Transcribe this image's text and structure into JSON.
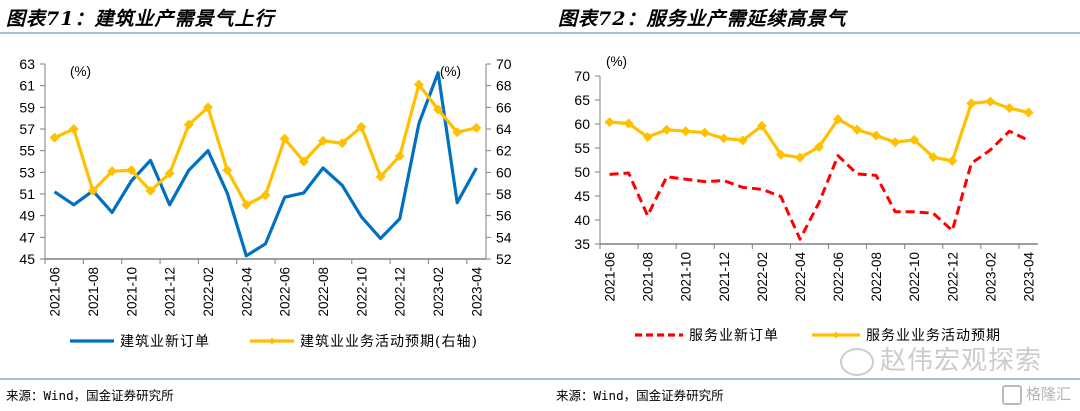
{
  "source_text": "来源：Wind，国金证券研究所",
  "watermark": {
    "text": "赵伟宏观探索",
    "icon": "wechat-icon",
    "logo_text": "格隆汇",
    "logo_icon": "gelonghui-logo-icon"
  },
  "colors": {
    "blue": "#0070C0",
    "gold": "#FFC000",
    "red": "#FF0000",
    "rule": "#a9c0d3",
    "axis": "#808080"
  },
  "chart_data": [
    {
      "type": "line",
      "title": "图表71：建筑业产需景气上行",
      "x": [
        "2021-06",
        "2021-07",
        "2021-08",
        "2021-09",
        "2021-10",
        "2021-11",
        "2021-12",
        "2022-01",
        "2022-02",
        "2022-03",
        "2022-04",
        "2022-05",
        "2022-06",
        "2022-07",
        "2022-08",
        "2022-09",
        "2022-10",
        "2022-11",
        "2022-12",
        "2023-01",
        "2023-02",
        "2023-03",
        "2023-04"
      ],
      "xticks": [
        "2021-06",
        "2021-08",
        "2021-10",
        "2021-12",
        "2022-02",
        "2022-04",
        "2022-06",
        "2022-08",
        "2022-10",
        "2022-12",
        "2023-02",
        "2023-04"
      ],
      "ylabel_left": "(%)",
      "ylabel_right": "(%)",
      "ylim_left": [
        45,
        63
      ],
      "yticks_left": [
        45,
        47,
        49,
        51,
        53,
        55,
        57,
        59,
        61,
        63
      ],
      "ylim_right": [
        52,
        70
      ],
      "yticks_right": [
        52,
        54,
        56,
        58,
        60,
        62,
        64,
        66,
        68,
        70
      ],
      "grid": false,
      "legend_position": "bottom",
      "series": [
        {
          "name": "建筑业新订单",
          "axis": "left",
          "color": "#0070C0",
          "marker": "none",
          "dash": false,
          "values": [
            51.2,
            50.0,
            51.3,
            49.3,
            52.2,
            54.1,
            50.0,
            53.2,
            55.0,
            51.1,
            45.3,
            46.4,
            50.7,
            51.1,
            53.4,
            51.8,
            48.9,
            46.9,
            48.7,
            57.5,
            62.2,
            50.2,
            53.4
          ]
        },
        {
          "name": "建筑业业务活动预期(右轴)",
          "axis": "right",
          "color": "#FFC000",
          "marker": "diamond",
          "dash": false,
          "values": [
            63.2,
            64.0,
            58.3,
            60.1,
            60.2,
            58.3,
            59.9,
            64.4,
            66.0,
            60.2,
            57.0,
            57.9,
            63.1,
            61.0,
            62.9,
            62.7,
            64.2,
            59.6,
            61.5,
            68.1,
            65.8,
            63.7,
            64.1
          ]
        }
      ]
    },
    {
      "type": "line",
      "title": "图表72：服务业产需延续高景气",
      "x": [
        "2021-06",
        "2021-07",
        "2021-08",
        "2021-09",
        "2021-10",
        "2021-11",
        "2021-12",
        "2022-01",
        "2022-02",
        "2022-03",
        "2022-04",
        "2022-05",
        "2022-06",
        "2022-07",
        "2022-08",
        "2022-09",
        "2022-10",
        "2022-11",
        "2022-12",
        "2023-01",
        "2023-02",
        "2023-03",
        "2023-04"
      ],
      "xticks": [
        "2021-06",
        "2021-08",
        "2021-10",
        "2021-12",
        "2022-02",
        "2022-04",
        "2022-06",
        "2022-08",
        "2022-10",
        "2022-12",
        "2023-02",
        "2023-04"
      ],
      "ylabel_left": "(%)",
      "ylim_left": [
        35,
        70
      ],
      "yticks_left": [
        35,
        40,
        45,
        50,
        55,
        60,
        65,
        70
      ],
      "grid": false,
      "legend_position": "bottom",
      "series": [
        {
          "name": "服务业新订单",
          "axis": "left",
          "color": "#FF0000",
          "marker": "none",
          "dash": true,
          "values": [
            49.5,
            49.8,
            40.9,
            49.0,
            48.5,
            48.0,
            48.2,
            46.8,
            46.4,
            44.9,
            36.0,
            43.6,
            53.4,
            49.6,
            49.3,
            41.7,
            41.7,
            41.4,
            37.8,
            51.8,
            54.6,
            58.5,
            56.6
          ]
        },
        {
          "name": "服务业业务活动预期",
          "axis": "left",
          "color": "#FFC000",
          "marker": "diamond",
          "dash": false,
          "values": [
            60.4,
            60.1,
            57.3,
            58.8,
            58.5,
            58.2,
            57.0,
            56.6,
            59.6,
            53.6,
            53.0,
            55.2,
            61.0,
            58.8,
            57.6,
            56.2,
            56.7,
            53.1,
            52.3,
            64.3,
            64.7,
            63.3,
            62.4
          ]
        }
      ]
    }
  ]
}
